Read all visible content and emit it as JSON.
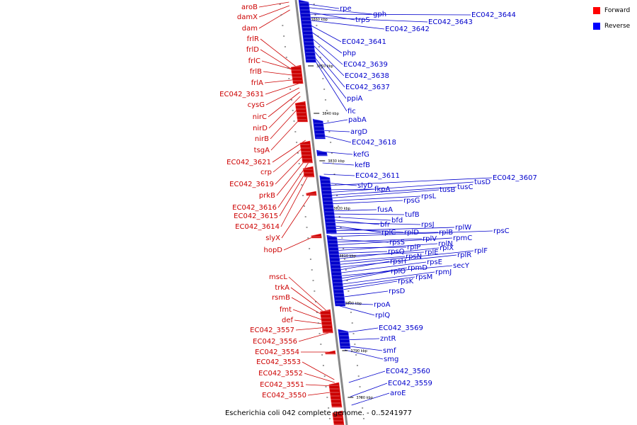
{
  "caption": "Escherichia coli 042 complete genome. - 0..5241977",
  "legend": [
    {
      "label": "Forward",
      "color": "#ff0000"
    },
    {
      "label": "Reverse",
      "color": "#0000ff"
    }
  ],
  "colors": {
    "forward": "#cc0000",
    "reverse": "#0000cc",
    "backbone": "#888888"
  },
  "scale_labels": [
    "3860 kbp",
    "3850 kbp",
    "3840 kbp",
    "3830 kbp",
    "3820 kbp",
    "3810 kbp",
    "3800 kbp",
    "3790 kbp",
    "3780 kbp"
  ],
  "forward_genes": [
    "aroB",
    "damX",
    "dam",
    "frlR",
    "frlD",
    "frlC",
    "frlB",
    "frlA",
    "EC042_3631",
    "cysG",
    "nirC",
    "nirD",
    "nirB",
    "tsgA",
    "EC042_3621",
    "crp",
    "EC042_3619",
    "prkB",
    "EC042_3616",
    "EC042_3615",
    "EC042_3614",
    "slyX",
    "hopD",
    "mscL",
    "trkA",
    "rsmB",
    "fmt",
    "def",
    "EC042_3557",
    "EC042_3556",
    "EC042_3554",
    "EC042_3553",
    "EC042_3552",
    "EC042_3551",
    "EC042_3550"
  ],
  "reverse_genes": [
    "rpe",
    "gph",
    "trpS",
    "EC042_3644",
    "EC042_3643",
    "EC042_3642",
    "EC042_3641",
    "php",
    "EC042_3639",
    "EC042_3638",
    "EC042_3637",
    "ppiA",
    "fic",
    "pabA",
    "argD",
    "EC042_3618",
    "kefG",
    "kefB",
    "EC042_3611",
    "slyD",
    "EC042_3607",
    "fkpA",
    "tusD",
    "tusC",
    "tusB",
    "rpsL",
    "rpsG",
    "fusA",
    "tufB",
    "bfd",
    "bfr",
    "rpsJ",
    "rplC",
    "rplD",
    "rplW",
    "rplB",
    "rpsC",
    "rpsS",
    "rplV",
    "rpmC",
    "rplP",
    "rplN",
    "rpsQ",
    "rplE",
    "rplX",
    "rpsN",
    "rplF",
    "rplR",
    "rpsH",
    "rpsE",
    "secY",
    "rpmD",
    "rplO",
    "rpmJ",
    "rpsM",
    "rpsK",
    "rpsD",
    "rpoA",
    "rplQ",
    "EC042_3569",
    "zntR",
    "smf",
    "smg",
    "EC042_3560",
    "EC042_3559",
    "aroE"
  ]
}
